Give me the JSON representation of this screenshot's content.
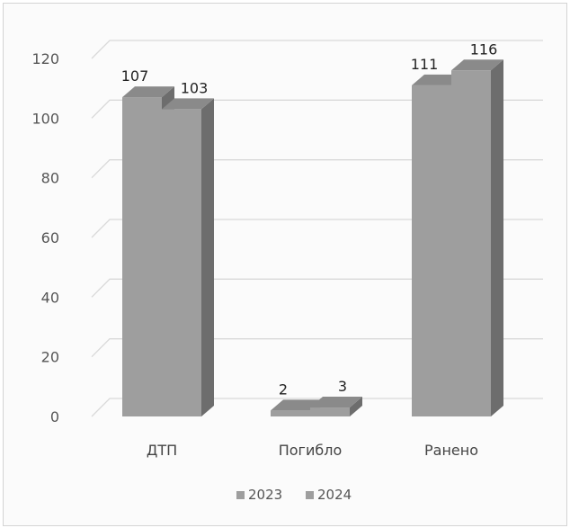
{
  "chart_data": {
    "type": "bar",
    "categories": [
      "ДТП",
      "Погибло",
      "Ранено"
    ],
    "series": [
      {
        "name": "2023",
        "values": [
          107,
          2,
          111
        ]
      },
      {
        "name": "2024",
        "values": [
          103,
          3,
          116
        ]
      }
    ],
    "ylim": [
      0,
      120
    ],
    "yticks": [
      "0",
      "20",
      "40",
      "60",
      "80",
      "100",
      "120"
    ],
    "grid": true,
    "legend_position": "bottom",
    "style": "3d-clustered-column",
    "colors": {
      "front": "#9e9e9e",
      "top": "#8a8a8a",
      "side": "#6d6d6d",
      "grid": "#d9d9d9"
    }
  }
}
